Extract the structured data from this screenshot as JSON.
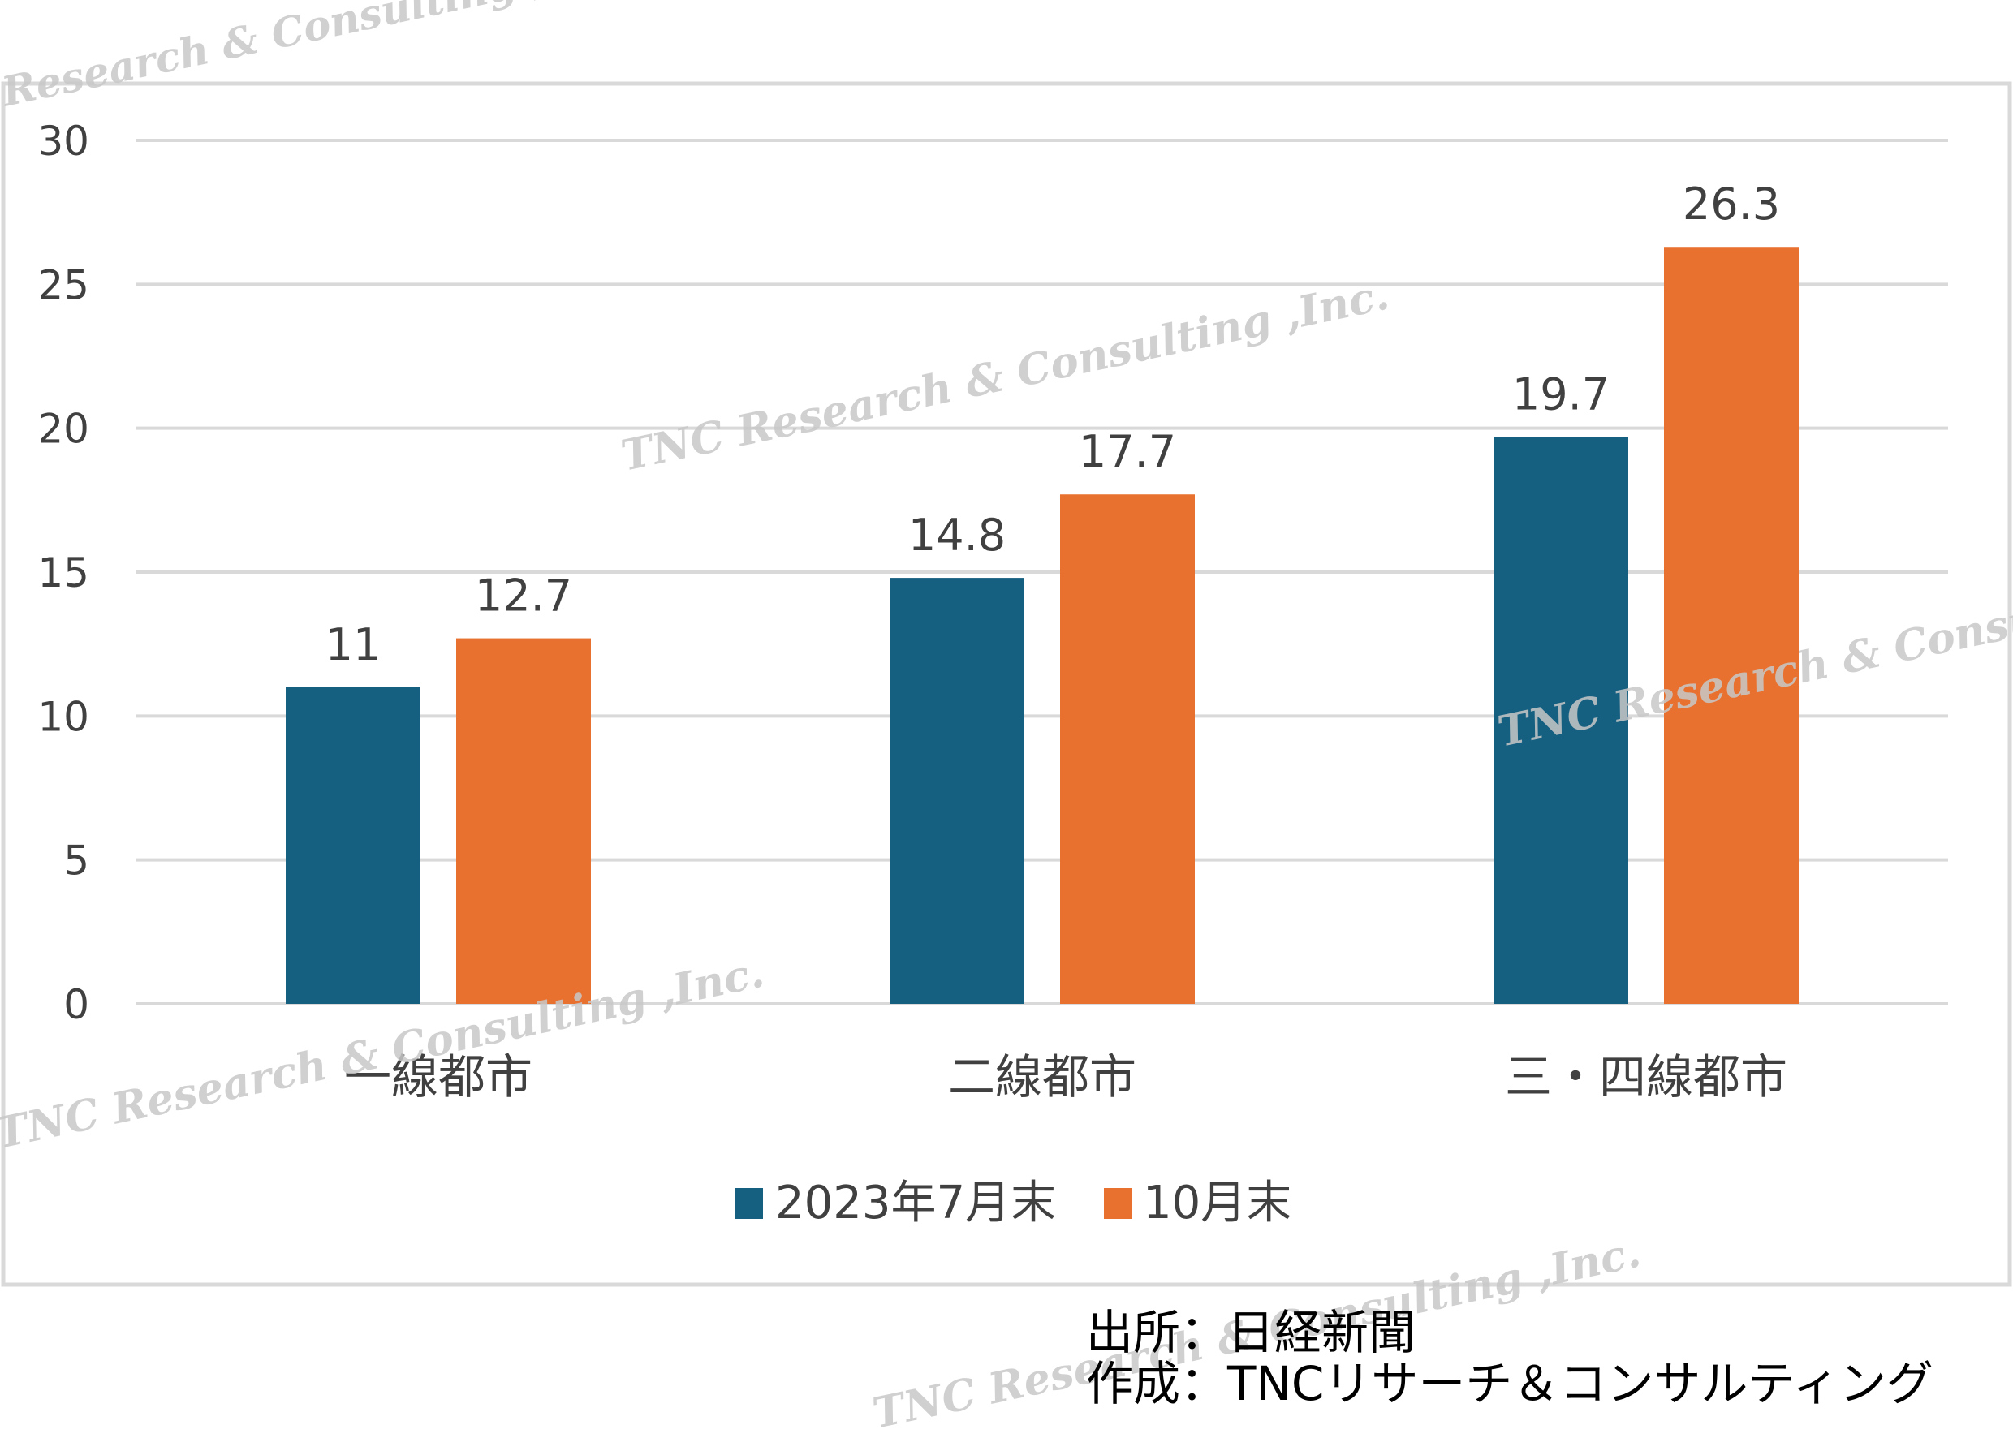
{
  "watermark_text": "TNC Research & Consulting ,Inc.",
  "source": {
    "line1": "出所：日経新聞",
    "line2": "作成：TNCリサーチ＆コンサルティング"
  },
  "colors": {
    "series1": "#155f80",
    "series2": "#e87130",
    "grid": "#d9d9d9",
    "frame": "#d9d9d9"
  },
  "chart_data": {
    "type": "bar",
    "categories": [
      "一線都市",
      "二線都市",
      "三・四線都市"
    ],
    "series": [
      {
        "name": "2023年7月末",
        "values": [
          11,
          14.8,
          19.7
        ]
      },
      {
        "name": "10月末",
        "values": [
          12.7,
          17.7,
          26.3
        ]
      }
    ],
    "data_labels": [
      [
        "11",
        "14.8",
        "19.7"
      ],
      [
        "12.7",
        "17.7",
        "26.3"
      ]
    ],
    "yticks": [
      0,
      5,
      10,
      15,
      20,
      25,
      30
    ],
    "ylim": [
      0,
      30
    ],
    "grid": true,
    "legend_position": "bottom",
    "title": "",
    "xlabel": "",
    "ylabel": ""
  }
}
